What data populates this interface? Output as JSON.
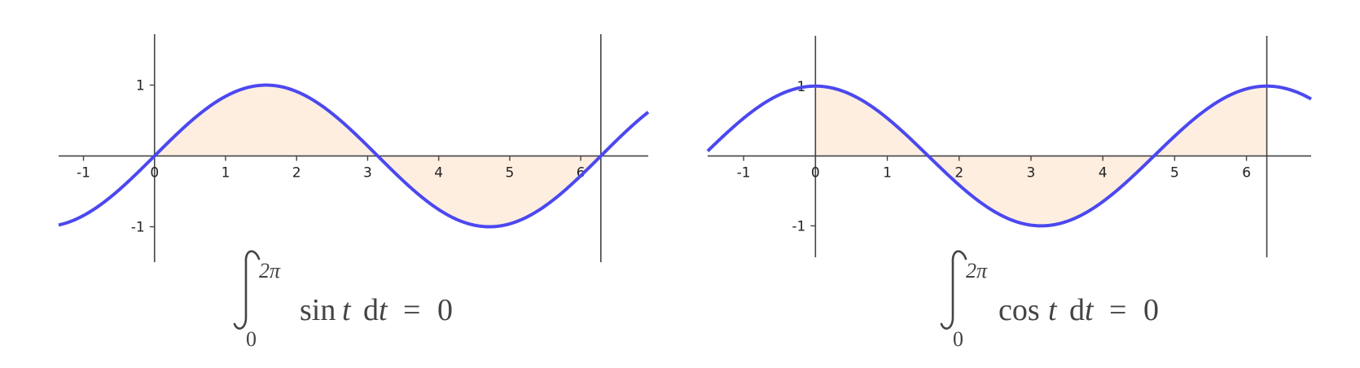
{
  "chart_data": [
    {
      "type": "line",
      "function": "sin",
      "series": [
        {
          "samples": [
            {
              "x": -1.35,
              "y": -0.976
            },
            {
              "x": -1,
              "y": -0.841
            },
            {
              "x": 0,
              "y": 0
            },
            {
              "x": 1,
              "y": 0.841
            },
            {
              "x": 1.571,
              "y": 1
            },
            {
              "x": 2,
              "y": 0.909
            },
            {
              "x": 3,
              "y": 0.141
            },
            {
              "x": 3.142,
              "y": 0
            },
            {
              "x": 4,
              "y": -0.757
            },
            {
              "x": 4.712,
              "y": -1
            },
            {
              "x": 5,
              "y": -0.959
            },
            {
              "x": 6,
              "y": -0.279
            },
            {
              "x": 6.283,
              "y": 0
            },
            {
              "x": 6.95,
              "y": 0.619
            }
          ]
        }
      ],
      "xlim": [
        -1.35,
        6.95
      ],
      "ylim": [
        -1.5,
        1.65
      ],
      "x_ticks": [
        "-1",
        "0",
        "1",
        "2",
        "3",
        "4",
        "5",
        "6"
      ],
      "x_tick_values": [
        -1,
        0,
        1,
        2,
        3,
        4,
        5,
        6
      ],
      "y_ticks": [
        "1",
        "-1"
      ],
      "y_tick_values": [
        1,
        -1
      ],
      "shaded_interval": [
        0,
        6.283
      ],
      "vertical_line_x": 6.283,
      "grid": false,
      "curve_color": "#4b48f0",
      "fill_color": "#fdeee0",
      "caption": {
        "upper": "2π",
        "lower": "0",
        "func": "sin",
        "var": "t",
        "diff": "d",
        "dvar": "t",
        "equals": "=",
        "result": "0"
      }
    },
    {
      "type": "line",
      "function": "cos",
      "series": [
        {
          "samples": [
            {
              "x": -1.5,
              "y": 0.071
            },
            {
              "x": -1,
              "y": 0.54
            },
            {
              "x": 0,
              "y": 1
            },
            {
              "x": 1,
              "y": 0.54
            },
            {
              "x": 1.571,
              "y": 0
            },
            {
              "x": 2,
              "y": -0.416
            },
            {
              "x": 3,
              "y": -0.99
            },
            {
              "x": 3.142,
              "y": -1
            },
            {
              "x": 4,
              "y": -0.654
            },
            {
              "x": 4.712,
              "y": 0
            },
            {
              "x": 5,
              "y": 0.284
            },
            {
              "x": 6,
              "y": 0.96
            },
            {
              "x": 6.283,
              "y": 1
            },
            {
              "x": 6.9,
              "y": 0.815
            }
          ]
        }
      ],
      "xlim": [
        -1.5,
        6.9
      ],
      "ylim": [
        -1.45,
        1.65
      ],
      "x_ticks": [
        "-1",
        "0",
        "1",
        "2",
        "3",
        "4",
        "5",
        "6"
      ],
      "x_tick_values": [
        -1,
        0,
        1,
        2,
        3,
        4,
        5,
        6
      ],
      "y_ticks": [
        "1",
        "-1"
      ],
      "y_tick_values": [
        1,
        -1
      ],
      "shaded_interval": [
        0,
        6.283
      ],
      "vertical_line_x": 6.283,
      "grid": false,
      "curve_color": "#4b48f0",
      "fill_color": "#fdeee0",
      "caption": {
        "upper": "2π",
        "lower": "0",
        "func": "cos",
        "var": "t",
        "diff": "d",
        "dvar": "t",
        "equals": "=",
        "result": "0"
      }
    }
  ]
}
